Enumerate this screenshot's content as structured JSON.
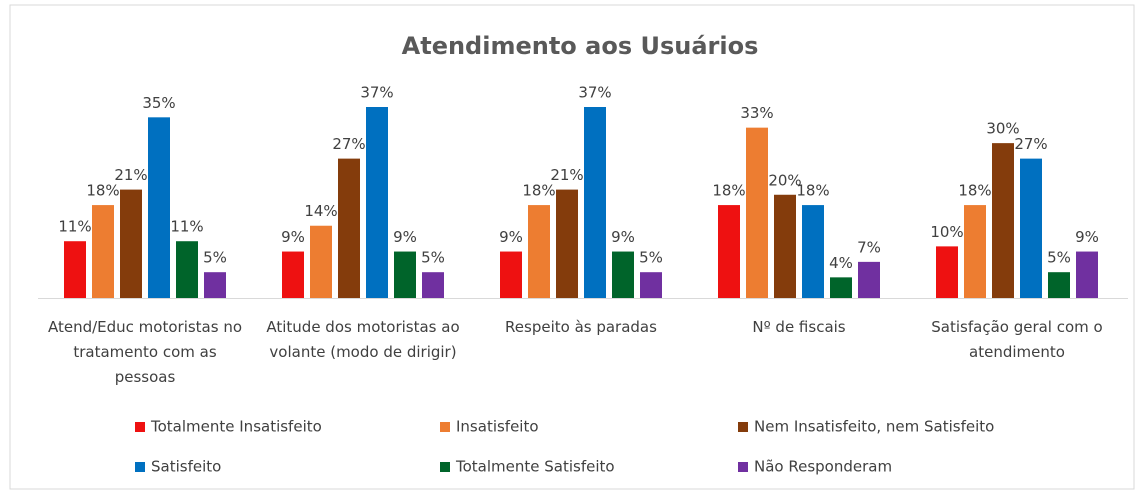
{
  "chart_data": {
    "type": "bar",
    "title": "Atendimento aos Usuários",
    "categories": [
      "Atend/Educ motoristas no tratamento com as pessoas",
      "Atitude dos motoristas ao volante (modo de dirigir)",
      "Respeito às paradas",
      "Nº de fiscais",
      "Satisfação geral com o atendimento"
    ],
    "series": [
      {
        "name": "Totalmente Insatisfeito",
        "color": "#ee1111",
        "values": [
          11,
          9,
          9,
          18,
          10
        ],
        "value_labels": [
          "11%",
          "9%",
          "9%",
          "18%",
          "10%"
        ]
      },
      {
        "name": "Insatisfeito",
        "color": "#ed7d31",
        "values": [
          18,
          14,
          18,
          33,
          18
        ],
        "value_labels": [
          "18%",
          "14%",
          "18%",
          "33%",
          "18%"
        ]
      },
      {
        "name": "Nem Insatisfeito, nem Satisfeito",
        "color": "#843c0c",
        "values": [
          21,
          27,
          21,
          20,
          30
        ],
        "value_labels": [
          "21%",
          "27%",
          "21%",
          "20%",
          "30%"
        ]
      },
      {
        "name": "Satisfeito",
        "color": "#0070c0",
        "values": [
          35,
          37,
          37,
          18,
          27
        ],
        "value_labels": [
          "35%",
          "37%",
          "37%",
          "18%",
          "27%"
        ]
      },
      {
        "name": "Totalmente Satisfeito",
        "color": "#00642a",
        "values": [
          11,
          9,
          9,
          4,
          5
        ],
        "value_labels": [
          "11%",
          "9%",
          "9%",
          "4%",
          "5%"
        ]
      },
      {
        "name": "Não Responderam",
        "color": "#7030a0",
        "values": [
          5,
          5,
          5,
          7,
          9
        ],
        "value_labels": [
          "5%",
          "5%",
          "5%",
          "7%",
          "9%"
        ]
      }
    ]
  }
}
